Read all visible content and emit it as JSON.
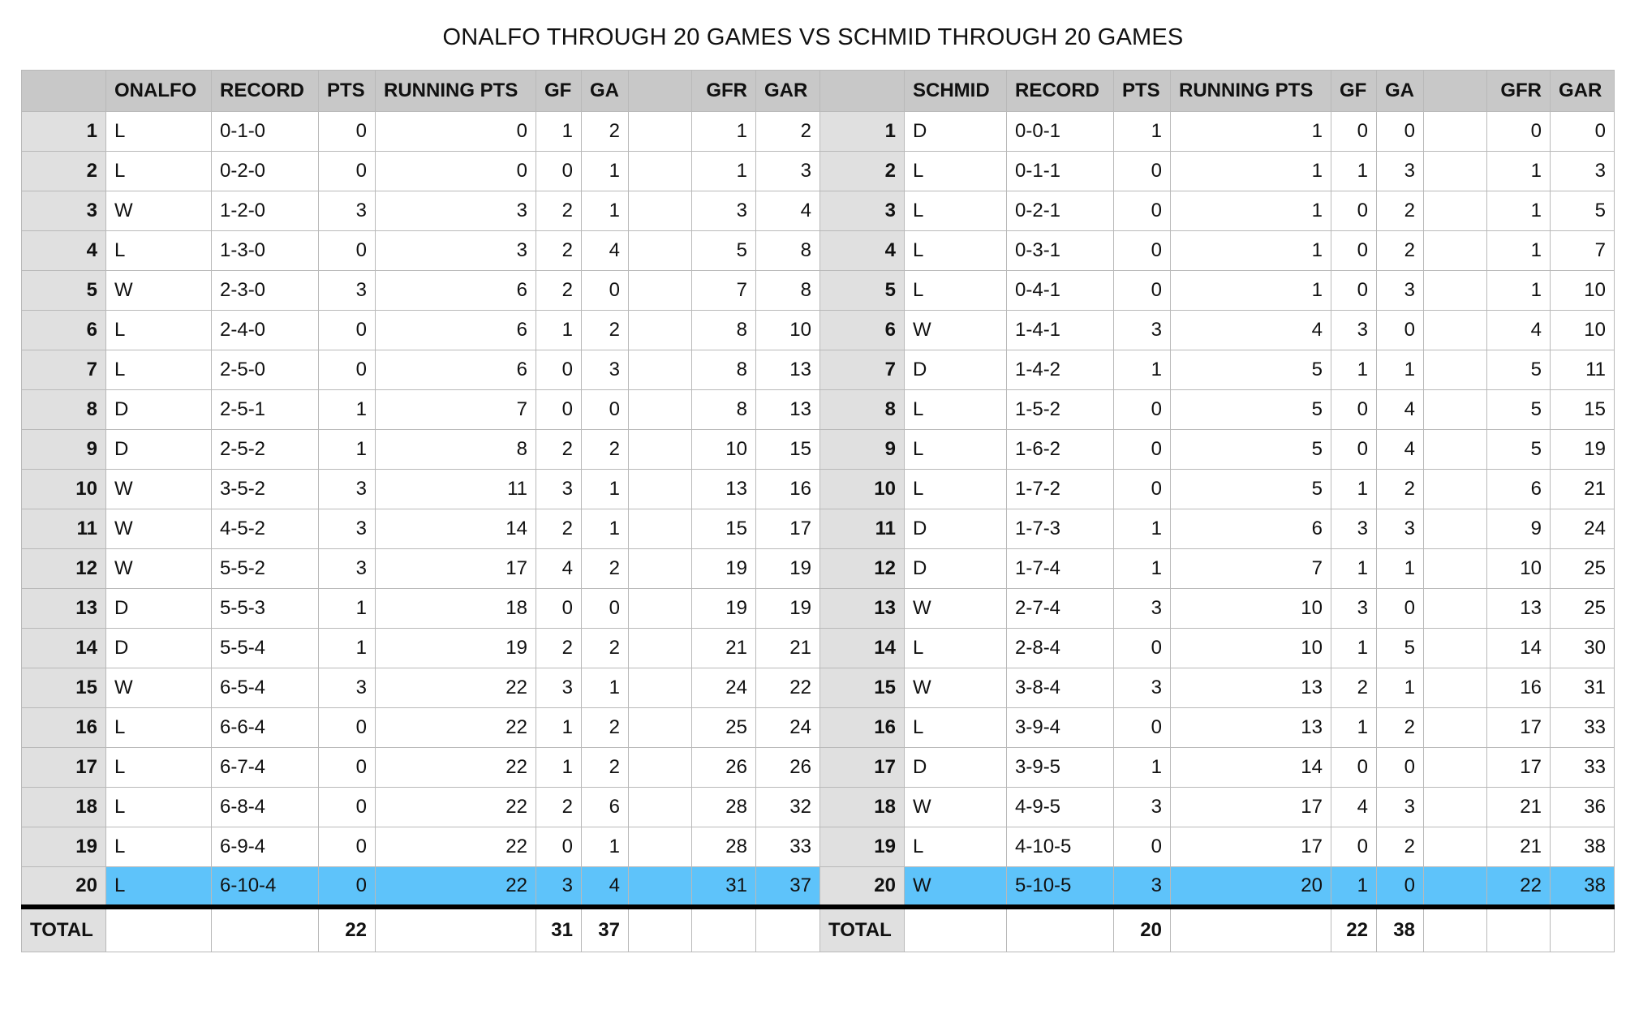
{
  "title": "ONALFO THROUGH 20 GAMES VS SCHMID THROUGH 20 GAMES",
  "highlight_color": "#5ec3fa",
  "headers": {
    "left": [
      "ONALFO",
      "RECORD",
      "PTS",
      "RUNNING PTS",
      "GF",
      "GA",
      "",
      "GFR",
      "GAR"
    ],
    "right": [
      "SCHMID",
      "RECORD",
      "PTS",
      "RUNNING PTS",
      "GF",
      "GA",
      "",
      "GFR",
      "GAR"
    ]
  },
  "rows": [
    {
      "game": "1",
      "o": [
        "L",
        "0-1-0",
        "0",
        "0",
        "1",
        "2",
        "",
        "1",
        "2"
      ],
      "s": [
        "D",
        "0-0-1",
        "1",
        "1",
        "0",
        "0",
        "",
        "0",
        "0"
      ]
    },
    {
      "game": "2",
      "o": [
        "L",
        "0-2-0",
        "0",
        "0",
        "0",
        "1",
        "",
        "1",
        "3"
      ],
      "s": [
        "L",
        "0-1-1",
        "0",
        "1",
        "1",
        "3",
        "",
        "1",
        "3"
      ]
    },
    {
      "game": "3",
      "o": [
        "W",
        "1-2-0",
        "3",
        "3",
        "2",
        "1",
        "",
        "3",
        "4"
      ],
      "s": [
        "L",
        "0-2-1",
        "0",
        "1",
        "0",
        "2",
        "",
        "1",
        "5"
      ]
    },
    {
      "game": "4",
      "o": [
        "L",
        "1-3-0",
        "0",
        "3",
        "2",
        "4",
        "",
        "5",
        "8"
      ],
      "s": [
        "L",
        "0-3-1",
        "0",
        "1",
        "0",
        "2",
        "",
        "1",
        "7"
      ]
    },
    {
      "game": "5",
      "o": [
        "W",
        "2-3-0",
        "3",
        "6",
        "2",
        "0",
        "",
        "7",
        "8"
      ],
      "s": [
        "L",
        "0-4-1",
        "0",
        "1",
        "0",
        "3",
        "",
        "1",
        "10"
      ]
    },
    {
      "game": "6",
      "o": [
        "L",
        "2-4-0",
        "0",
        "6",
        "1",
        "2",
        "",
        "8",
        "10"
      ],
      "s": [
        "W",
        "1-4-1",
        "3",
        "4",
        "3",
        "0",
        "",
        "4",
        "10"
      ]
    },
    {
      "game": "7",
      "o": [
        "L",
        "2-5-0",
        "0",
        "6",
        "0",
        "3",
        "",
        "8",
        "13"
      ],
      "s": [
        "D",
        "1-4-2",
        "1",
        "5",
        "1",
        "1",
        "",
        "5",
        "11"
      ]
    },
    {
      "game": "8",
      "o": [
        "D",
        "2-5-1",
        "1",
        "7",
        "0",
        "0",
        "",
        "8",
        "13"
      ],
      "s": [
        "L",
        "1-5-2",
        "0",
        "5",
        "0",
        "4",
        "",
        "5",
        "15"
      ]
    },
    {
      "game": "9",
      "o": [
        "D",
        "2-5-2",
        "1",
        "8",
        "2",
        "2",
        "",
        "10",
        "15"
      ],
      "s": [
        "L",
        "1-6-2",
        "0",
        "5",
        "0",
        "4",
        "",
        "5",
        "19"
      ]
    },
    {
      "game": "10",
      "o": [
        "W",
        "3-5-2",
        "3",
        "11",
        "3",
        "1",
        "",
        "13",
        "16"
      ],
      "s": [
        "L",
        "1-7-2",
        "0",
        "5",
        "1",
        "2",
        "",
        "6",
        "21"
      ]
    },
    {
      "game": "11",
      "o": [
        "W",
        "4-5-2",
        "3",
        "14",
        "2",
        "1",
        "",
        "15",
        "17"
      ],
      "s": [
        "D",
        "1-7-3",
        "1",
        "6",
        "3",
        "3",
        "",
        "9",
        "24"
      ]
    },
    {
      "game": "12",
      "o": [
        "W",
        "5-5-2",
        "3",
        "17",
        "4",
        "2",
        "",
        "19",
        "19"
      ],
      "s": [
        "D",
        "1-7-4",
        "1",
        "7",
        "1",
        "1",
        "",
        "10",
        "25"
      ]
    },
    {
      "game": "13",
      "o": [
        "D",
        "5-5-3",
        "1",
        "18",
        "0",
        "0",
        "",
        "19",
        "19"
      ],
      "s": [
        "W",
        "2-7-4",
        "3",
        "10",
        "3",
        "0",
        "",
        "13",
        "25"
      ]
    },
    {
      "game": "14",
      "o": [
        "D",
        "5-5-4",
        "1",
        "19",
        "2",
        "2",
        "",
        "21",
        "21"
      ],
      "s": [
        "L",
        "2-8-4",
        "0",
        "10",
        "1",
        "5",
        "",
        "14",
        "30"
      ]
    },
    {
      "game": "15",
      "o": [
        "W",
        "6-5-4",
        "3",
        "22",
        "3",
        "1",
        "",
        "24",
        "22"
      ],
      "s": [
        "W",
        "3-8-4",
        "3",
        "13",
        "2",
        "1",
        "",
        "16",
        "31"
      ]
    },
    {
      "game": "16",
      "o": [
        "L",
        "6-6-4",
        "0",
        "22",
        "1",
        "2",
        "",
        "25",
        "24"
      ],
      "s": [
        "L",
        "3-9-4",
        "0",
        "13",
        "1",
        "2",
        "",
        "17",
        "33"
      ]
    },
    {
      "game": "17",
      "o": [
        "L",
        "6-7-4",
        "0",
        "22",
        "1",
        "2",
        "",
        "26",
        "26"
      ],
      "s": [
        "D",
        "3-9-5",
        "1",
        "14",
        "0",
        "0",
        "",
        "17",
        "33"
      ]
    },
    {
      "game": "18",
      "o": [
        "L",
        "6-8-4",
        "0",
        "22",
        "2",
        "6",
        "",
        "28",
        "32"
      ],
      "s": [
        "W",
        "4-9-5",
        "3",
        "17",
        "4",
        "3",
        "",
        "21",
        "36"
      ]
    },
    {
      "game": "19",
      "o": [
        "L",
        "6-9-4",
        "0",
        "22",
        "0",
        "1",
        "",
        "28",
        "33"
      ],
      "s": [
        "L",
        "4-10-5",
        "0",
        "17",
        "0",
        "2",
        "",
        "21",
        "38"
      ]
    },
    {
      "game": "20",
      "o": [
        "L",
        "6-10-4",
        "0",
        "22",
        "3",
        "4",
        "",
        "31",
        "37"
      ],
      "s": [
        "W",
        "5-10-5",
        "3",
        "20",
        "1",
        "0",
        "",
        "22",
        "38"
      ]
    }
  ],
  "highlight_row": "20",
  "totals": {
    "left": {
      "label": "TOTAL",
      "pts": "22",
      "gf": "31",
      "ga": "37"
    },
    "right": {
      "label": "TOTAL",
      "pts": "20",
      "gf": "22",
      "ga": "38"
    }
  }
}
